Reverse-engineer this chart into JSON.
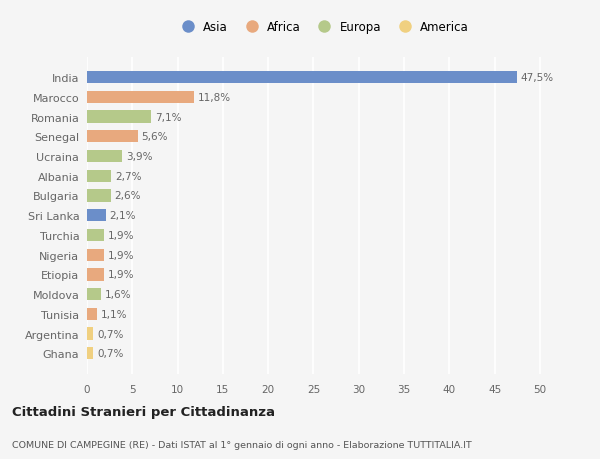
{
  "countries": [
    "India",
    "Marocco",
    "Romania",
    "Senegal",
    "Ucraina",
    "Albania",
    "Bulgaria",
    "Sri Lanka",
    "Turchia",
    "Nigeria",
    "Etiopia",
    "Moldova",
    "Tunisia",
    "Argentina",
    "Ghana"
  ],
  "values": [
    47.5,
    11.8,
    7.1,
    5.6,
    3.9,
    2.7,
    2.6,
    2.1,
    1.9,
    1.9,
    1.9,
    1.6,
    1.1,
    0.7,
    0.7
  ],
  "labels": [
    "47,5%",
    "11,8%",
    "7,1%",
    "5,6%",
    "3,9%",
    "2,7%",
    "2,6%",
    "2,1%",
    "1,9%",
    "1,9%",
    "1,9%",
    "1,6%",
    "1,1%",
    "0,7%",
    "0,7%"
  ],
  "colors": [
    "#6b8ec9",
    "#e8a97e",
    "#b5c98a",
    "#e8a97e",
    "#b5c98a",
    "#b5c98a",
    "#b5c98a",
    "#6b8ec9",
    "#b5c98a",
    "#e8a97e",
    "#e8a97e",
    "#b5c98a",
    "#e8a97e",
    "#f0d080",
    "#f0d080"
  ],
  "legend_labels": [
    "Asia",
    "Africa",
    "Europa",
    "America"
  ],
  "legend_colors": [
    "#6b8ec9",
    "#e8a97e",
    "#b5c98a",
    "#f0d080"
  ],
  "title": "Cittadini Stranieri per Cittadinanza",
  "subtitle": "COMUNE DI CAMPEGINE (RE) - Dati ISTAT al 1° gennaio di ogni anno - Elaborazione TUTTITALIA.IT",
  "xlim": [
    0,
    52
  ],
  "xticks": [
    0,
    5,
    10,
    15,
    20,
    25,
    30,
    35,
    40,
    45,
    50
  ],
  "background_color": "#f5f5f5",
  "grid_color": "#ffffff"
}
